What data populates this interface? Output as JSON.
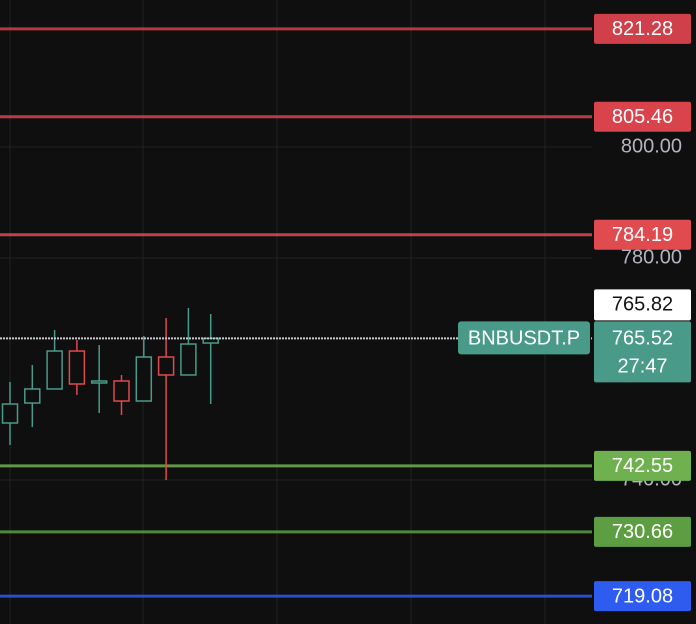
{
  "chart_data": {
    "type": "candlestick",
    "categories": [
      null,
      null,
      null,
      null,
      null,
      null,
      null,
      null,
      null,
      null
    ],
    "open": [
      750.27,
      753.87,
      756.4,
      763.24,
      757.48,
      757.84,
      754.23,
      762.16,
      758.92,
      764.68
    ],
    "high": [
      757.66,
      760.72,
      767.03,
      765.23,
      764.32,
      758.92,
      765.95,
      769.19,
      770.99,
      769.91
    ],
    "low": [
      746.31,
      749.55,
      756.4,
      755.32,
      752.07,
      751.71,
      754.23,
      740.0,
      758.92,
      753.69
    ],
    "close": [
      753.69,
      756.4,
      763.24,
      757.3,
      757.84,
      754.23,
      762.16,
      758.92,
      764.5,
      765.52
    ],
    "up_color": "#4a9a89",
    "down_color": "#e0494d",
    "ylim": [
      714.05,
      826.49
    ],
    "yticks": [
      {
        "value": 800,
        "label": "800.00"
      },
      {
        "value": 780,
        "label": "780.00"
      },
      {
        "value": 740,
        "label": "740.00"
      }
    ],
    "grid": true,
    "levels": [
      {
        "value": 821.28,
        "color": "#d0404a"
      },
      {
        "value": 805.46,
        "color": "#d8434c"
      },
      {
        "value": 784.19,
        "color": "#e04b50"
      },
      {
        "value": 742.55,
        "color": "#6fb04f"
      },
      {
        "value": 730.66,
        "color": "#5e9e42"
      },
      {
        "value": 719.08,
        "color": "#2e5bf0"
      }
    ],
    "marker_price": 765.82,
    "last_price": {
      "name": "BNBUSDT.P",
      "value": 765.52,
      "countdown": "27:47",
      "color": "#4a9a89"
    }
  }
}
